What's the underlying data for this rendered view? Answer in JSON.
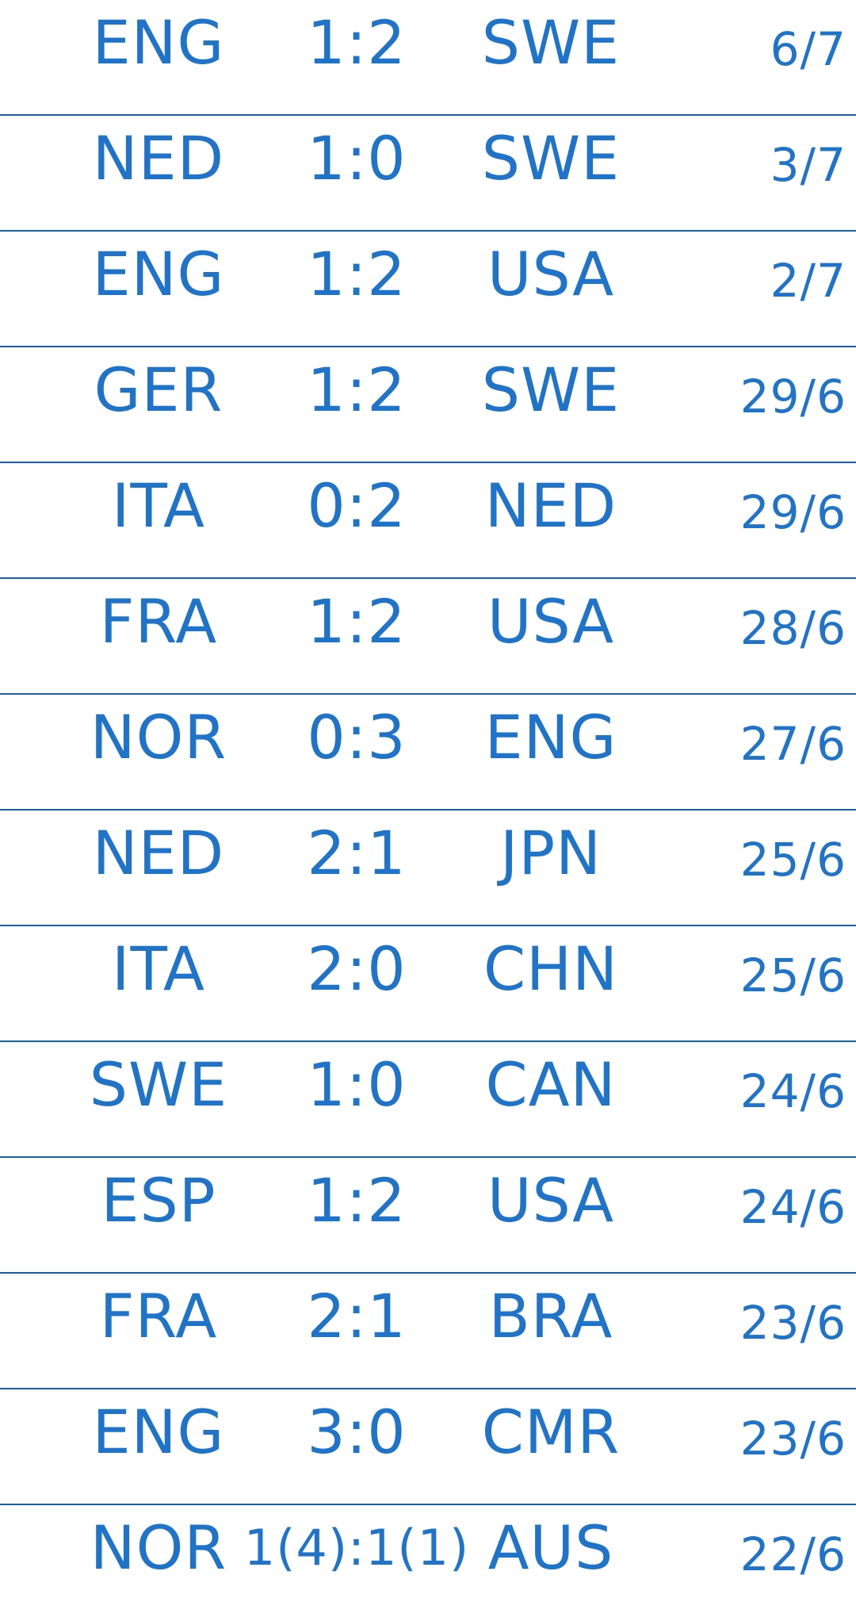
{
  "matches": [
    {
      "home": "ENG",
      "score": "1:2",
      "away": "SWE",
      "date": "6/7"
    },
    {
      "home": "NED",
      "score": "1:0",
      "away": "SWE",
      "date": "3/7"
    },
    {
      "home": "ENG",
      "score": "1:2",
      "away": "USA",
      "date": "2/7"
    },
    {
      "home": "GER",
      "score": "1:2",
      "away": "SWE",
      "date": "29/6"
    },
    {
      "home": "ITA",
      "score": "0:2",
      "away": "NED",
      "date": "29/6"
    },
    {
      "home": "FRA",
      "score": "1:2",
      "away": "USA",
      "date": "28/6"
    },
    {
      "home": "NOR",
      "score": "0:3",
      "away": "ENG",
      "date": "27/6"
    },
    {
      "home": "NED",
      "score": "2:1",
      "away": "JPN",
      "date": "25/6"
    },
    {
      "home": "ITA",
      "score": "2:0",
      "away": "CHN",
      "date": "25/6"
    },
    {
      "home": "SWE",
      "score": "1:0",
      "away": "CAN",
      "date": "24/6"
    },
    {
      "home": "ESP",
      "score": "1:2",
      "away": "USA",
      "date": "24/6"
    },
    {
      "home": "FRA",
      "score": "2:1",
      "away": "BRA",
      "date": "23/6"
    },
    {
      "home": "ENG",
      "score": "3:0",
      "away": "CMR",
      "date": "23/6"
    },
    {
      "home": "NOR",
      "score": "1(4):1(1)",
      "away": "AUS",
      "date": "22/6"
    }
  ]
}
